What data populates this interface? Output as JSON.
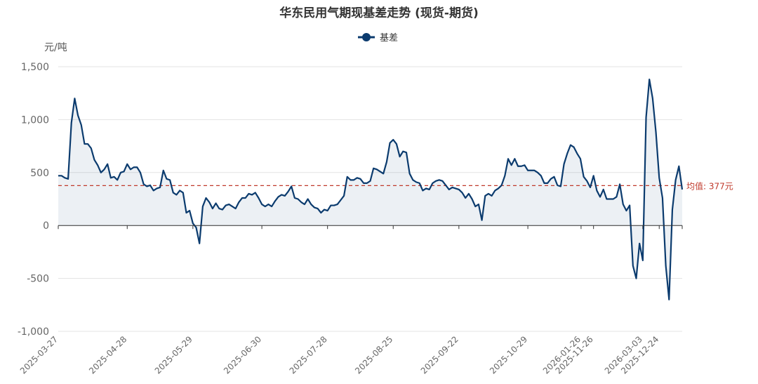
{
  "chart_data": {
    "type": "line",
    "title": "华东民用气期现基差走势 (现货-期货)",
    "ylabel": "元/吨",
    "xlabel": "",
    "ylim": [
      -1000,
      1500
    ],
    "yticks": [
      -1000,
      -500,
      0,
      500,
      1000,
      1500
    ],
    "ytick_labels": [
      "-1,000",
      "-500",
      "0",
      "500",
      "1,000",
      "1,500"
    ],
    "grid": true,
    "legend_position": "top-center",
    "x_start": "2025-03-27",
    "x_end": "2026-03-26",
    "xtick_labels": [
      "2025-03-27",
      "2025-04-28",
      "2025-05-29",
      "2025-06-30",
      "2025-07-28",
      "2025-08-25",
      "2025-09-22",
      "2025-10-29",
      "2025-11-26",
      "2025-12-24",
      "2026-01-26",
      "2026-03-03"
    ],
    "series": [
      {
        "name": "基差",
        "color": "#0b3b6e",
        "points": [
          [
            "2025-03-27",
            470
          ],
          [
            "2025-03-28",
            470
          ],
          [
            "2025-03-31",
            450
          ],
          [
            "2025-04-01",
            440
          ],
          [
            "2025-04-02",
            970
          ],
          [
            "2025-04-03",
            1200
          ],
          [
            "2025-04-07",
            1040
          ],
          [
            "2025-04-08",
            950
          ],
          [
            "2025-04-09",
            770
          ],
          [
            "2025-04-10",
            770
          ],
          [
            "2025-04-11",
            730
          ],
          [
            "2025-04-14",
            620
          ],
          [
            "2025-04-15",
            570
          ],
          [
            "2025-04-16",
            500
          ],
          [
            "2025-04-17",
            530
          ],
          [
            "2025-04-18",
            580
          ],
          [
            "2025-04-21",
            450
          ],
          [
            "2025-04-22",
            460
          ],
          [
            "2025-04-23",
            430
          ],
          [
            "2025-04-24",
            500
          ],
          [
            "2025-04-25",
            510
          ],
          [
            "2025-04-28",
            580
          ],
          [
            "2025-04-29",
            530
          ],
          [
            "2025-04-30",
            550
          ],
          [
            "2025-05-06",
            550
          ],
          [
            "2025-05-07",
            500
          ],
          [
            "2025-05-08",
            390
          ],
          [
            "2025-05-09",
            370
          ],
          [
            "2025-05-12",
            380
          ],
          [
            "2025-05-13",
            330
          ],
          [
            "2025-05-14",
            350
          ],
          [
            "2025-05-15",
            360
          ],
          [
            "2025-05-16",
            520
          ],
          [
            "2025-05-19",
            440
          ],
          [
            "2025-05-20",
            430
          ],
          [
            "2025-05-21",
            310
          ],
          [
            "2025-05-22",
            290
          ],
          [
            "2025-05-23",
            330
          ],
          [
            "2025-05-26",
            310
          ],
          [
            "2025-05-27",
            120
          ],
          [
            "2025-05-28",
            140
          ],
          [
            "2025-05-29",
            20
          ],
          [
            "2025-05-30",
            -20
          ],
          [
            "2025-06-03",
            -170
          ],
          [
            "2025-06-04",
            180
          ],
          [
            "2025-06-05",
            260
          ],
          [
            "2025-06-06",
            220
          ],
          [
            "2025-06-09",
            160
          ],
          [
            "2025-06-10",
            210
          ],
          [
            "2025-06-11",
            160
          ],
          [
            "2025-06-12",
            150
          ],
          [
            "2025-06-13",
            190
          ],
          [
            "2025-06-16",
            200
          ],
          [
            "2025-06-17",
            180
          ],
          [
            "2025-06-18",
            160
          ],
          [
            "2025-06-19",
            220
          ],
          [
            "2025-06-20",
            260
          ],
          [
            "2025-06-23",
            260
          ],
          [
            "2025-06-24",
            300
          ],
          [
            "2025-06-25",
            290
          ],
          [
            "2025-06-26",
            310
          ],
          [
            "2025-06-27",
            260
          ],
          [
            "2025-06-30",
            200
          ],
          [
            "2025-07-01",
            180
          ],
          [
            "2025-07-02",
            200
          ],
          [
            "2025-07-03",
            180
          ],
          [
            "2025-07-04",
            230
          ],
          [
            "2025-07-07",
            270
          ],
          [
            "2025-07-08",
            290
          ],
          [
            "2025-07-09",
            280
          ],
          [
            "2025-07-10",
            320
          ],
          [
            "2025-07-11",
            370
          ],
          [
            "2025-07-14",
            260
          ],
          [
            "2025-07-15",
            250
          ],
          [
            "2025-07-16",
            220
          ],
          [
            "2025-07-17",
            200
          ],
          [
            "2025-07-18",
            250
          ],
          [
            "2025-07-21",
            200
          ],
          [
            "2025-07-22",
            170
          ],
          [
            "2025-07-23",
            160
          ],
          [
            "2025-07-24",
            120
          ],
          [
            "2025-07-25",
            150
          ],
          [
            "2025-07-28",
            140
          ],
          [
            "2025-07-29",
            190
          ],
          [
            "2025-07-30",
            190
          ],
          [
            "2025-07-31",
            200
          ],
          [
            "2025-08-01",
            240
          ],
          [
            "2025-08-04",
            280
          ],
          [
            "2025-08-05",
            460
          ],
          [
            "2025-08-06",
            430
          ],
          [
            "2025-08-07",
            430
          ],
          [
            "2025-08-08",
            450
          ],
          [
            "2025-08-11",
            440
          ],
          [
            "2025-08-12",
            400
          ],
          [
            "2025-08-13",
            400
          ],
          [
            "2025-08-14",
            420
          ],
          [
            "2025-08-15",
            540
          ],
          [
            "2025-08-18",
            530
          ],
          [
            "2025-08-19",
            510
          ],
          [
            "2025-08-20",
            490
          ],
          [
            "2025-08-21",
            600
          ],
          [
            "2025-08-22",
            780
          ],
          [
            "2025-08-25",
            810
          ],
          [
            "2025-08-26",
            770
          ],
          [
            "2025-08-27",
            650
          ],
          [
            "2025-08-28",
            700
          ],
          [
            "2025-08-29",
            690
          ],
          [
            "2025-09-01",
            490
          ],
          [
            "2025-09-02",
            430
          ],
          [
            "2025-09-03",
            410
          ],
          [
            "2025-09-04",
            400
          ],
          [
            "2025-09-05",
            330
          ],
          [
            "2025-09-08",
            350
          ],
          [
            "2025-09-09",
            340
          ],
          [
            "2025-09-10",
            400
          ],
          [
            "2025-09-11",
            420
          ],
          [
            "2025-09-12",
            430
          ],
          [
            "2025-09-15",
            420
          ],
          [
            "2025-09-16",
            380
          ],
          [
            "2025-09-17",
            340
          ],
          [
            "2025-09-18",
            360
          ],
          [
            "2025-09-19",
            350
          ],
          [
            "2025-09-22",
            340
          ],
          [
            "2025-09-23",
            310
          ],
          [
            "2025-09-24",
            260
          ],
          [
            "2025-09-25",
            300
          ],
          [
            "2025-09-26",
            250
          ],
          [
            "2025-09-29",
            180
          ],
          [
            "2025-09-30",
            200
          ],
          [
            "2025-10-09",
            50
          ],
          [
            "2025-10-10",
            280
          ],
          [
            "2025-10-13",
            300
          ],
          [
            "2025-10-14",
            280
          ],
          [
            "2025-10-15",
            330
          ],
          [
            "2025-10-16",
            350
          ],
          [
            "2025-10-17",
            380
          ],
          [
            "2025-10-20",
            470
          ],
          [
            "2025-10-21",
            630
          ],
          [
            "2025-10-22",
            570
          ],
          [
            "2025-10-23",
            630
          ],
          [
            "2025-10-24",
            560
          ],
          [
            "2025-10-27",
            560
          ],
          [
            "2025-10-28",
            570
          ],
          [
            "2025-10-29",
            520
          ],
          [
            "2025-10-30",
            520
          ],
          [
            "2025-10-31",
            520
          ],
          [
            "2025-11-03",
            500
          ],
          [
            "2025-11-04",
            470
          ],
          [
            "2025-11-05",
            400
          ],
          [
            "2025-11-06",
            400
          ],
          [
            "2025-11-07",
            440
          ],
          [
            "2025-11-10",
            460
          ],
          [
            "2025-11-11",
            380
          ],
          [
            "2025-11-12",
            370
          ],
          [
            "2025-11-13",
            580
          ],
          [
            "2025-11-14",
            680
          ],
          [
            "2025-11-17",
            760
          ],
          [
            "2025-11-18",
            740
          ],
          [
            "2025-11-19",
            680
          ],
          [
            "2025-11-20",
            630
          ],
          [
            "2025-11-21",
            460
          ],
          [
            "2025-11-24",
            420
          ],
          [
            "2025-11-25",
            360
          ],
          [
            "2025-11-26",
            470
          ],
          [
            "2025-11-27",
            330
          ],
          [
            "2025-11-28",
            270
          ],
          [
            "2025-12-01",
            340
          ],
          [
            "2025-12-02",
            250
          ],
          [
            "2025-12-03",
            250
          ],
          [
            "2025-12-04",
            250
          ],
          [
            "2025-12-05",
            270
          ],
          [
            "2025-12-08",
            390
          ],
          [
            "2025-12-09",
            200
          ],
          [
            "2025-12-10",
            140
          ],
          [
            "2025-12-11",
            190
          ],
          [
            "2025-12-12",
            -380
          ],
          [
            "2025-12-15",
            -500
          ],
          [
            "2025-12-16",
            -170
          ],
          [
            "2025-12-17",
            -330
          ],
          [
            "2025-12-18",
            1020
          ],
          [
            "2025-12-19",
            1380
          ],
          [
            "2025-12-22",
            1200
          ],
          [
            "2025-12-23",
            880
          ],
          [
            "2025-12-24",
            450
          ],
          [
            "2025-12-25",
            260
          ],
          [
            "2025-12-26",
            -380
          ],
          [
            "2025-12-29",
            -700
          ],
          [
            "2025-12-30",
            150
          ],
          [
            "2025-12-31",
            430
          ],
          [
            "2026-01-05",
            560
          ],
          [
            "2026-01-06",
            340
          ]
        ]
      }
    ],
    "mean_line": {
      "value": 377,
      "label": "均值: 377元",
      "color": "#c0392b"
    }
  }
}
